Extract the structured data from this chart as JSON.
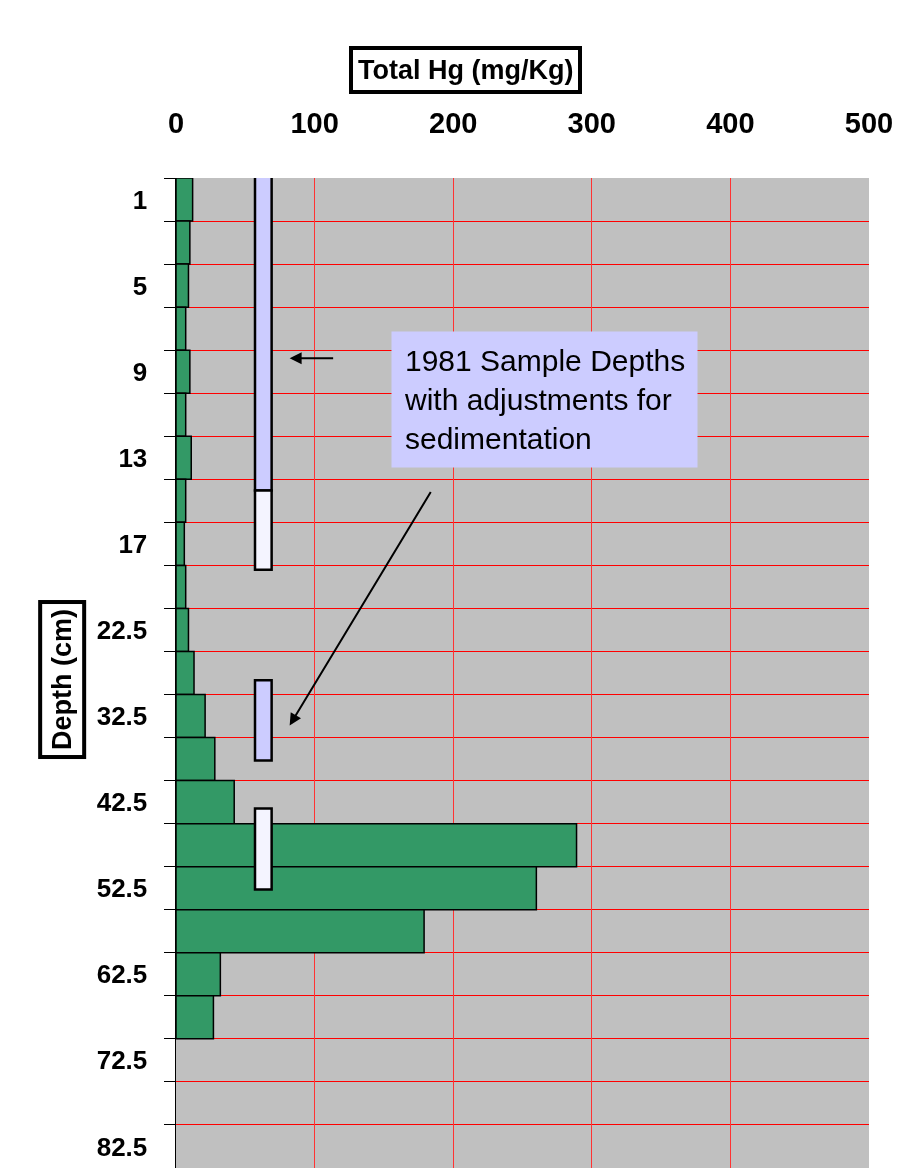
{
  "chart_data": {
    "type": "bar",
    "orientation": "horizontal",
    "xlabel": "Total Hg (mg/Kg)",
    "ylabel": "Depth (cm)",
    "categories": [
      "1",
      null,
      "5",
      null,
      "9",
      null,
      "13",
      null,
      "17",
      null,
      "22.5",
      null,
      "32.5",
      null,
      "42.5",
      null,
      "52.5",
      null,
      "62.5",
      null,
      "72.5",
      null,
      "82.5"
    ],
    "values": [
      12,
      10,
      9,
      7,
      10,
      7,
      11,
      7,
      6,
      7,
      9,
      13,
      21,
      28,
      42,
      289,
      260,
      179,
      32,
      27,
      null,
      null,
      null
    ],
    "color": "#339966",
    "xlim": [
      0,
      500
    ],
    "xticks": [
      0,
      100,
      200,
      300,
      400,
      500
    ],
    "grid": true,
    "annotations": [
      "1981 Sample Depths with adjustments for sedimentation"
    ]
  }
}
